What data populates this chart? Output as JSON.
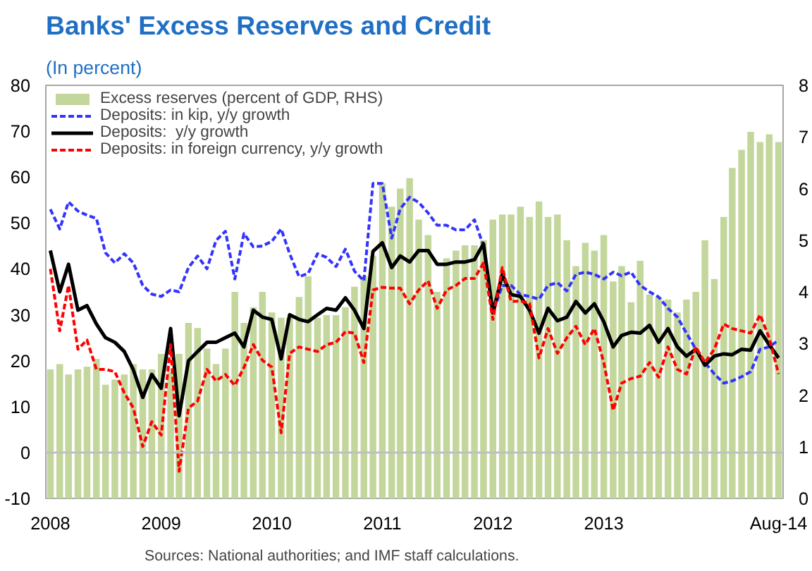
{
  "chart_data": {
    "type": "bar",
    "title": "Banks' Excess Reserves and Credit",
    "subtitle": "(In percent)",
    "x": [
      "2008-01",
      "2008-02",
      "2008-03",
      "2008-04",
      "2008-05",
      "2008-06",
      "2008-07",
      "2008-08",
      "2008-09",
      "2008-10",
      "2008-11",
      "2008-12",
      "2009-01",
      "2009-02",
      "2009-03",
      "2009-04",
      "2009-05",
      "2009-06",
      "2009-07",
      "2009-08",
      "2009-09",
      "2009-10",
      "2009-11",
      "2009-12",
      "2010-01",
      "2010-02",
      "2010-03",
      "2010-04",
      "2010-05",
      "2010-06",
      "2010-07",
      "2010-08",
      "2010-09",
      "2010-10",
      "2010-11",
      "2010-12",
      "2011-01",
      "2011-02",
      "2011-03",
      "2011-04",
      "2011-05",
      "2011-06",
      "2011-07",
      "2011-08",
      "2011-09",
      "2011-10",
      "2011-11",
      "2011-12",
      "2012-01",
      "2012-02",
      "2012-03",
      "2012-04",
      "2012-05",
      "2012-06",
      "2012-07",
      "2012-08",
      "2012-09",
      "2012-10",
      "2012-11",
      "2012-12",
      "2013-01",
      "2013-02",
      "2013-03",
      "2013-04",
      "2013-05",
      "2013-06",
      "2013-07",
      "2013-08",
      "2013-09",
      "2013-10",
      "2013-11",
      "2013-12",
      "2014-01",
      "2014-02",
      "2014-03",
      "2014-04",
      "2014-05",
      "2014-06",
      "2014-07",
      "2014-08"
    ],
    "series": [
      {
        "name": "Excess reserves (percent of GDP, RHS)",
        "axis": "y2",
        "color": "#c3d69b",
        "values": [
          2.5,
          2.6,
          2.4,
          2.5,
          2.55,
          2.7,
          2.2,
          2.3,
          2.4,
          2.6,
          2.5,
          2.5,
          2.8,
          2.45,
          2.8,
          3.4,
          3.3,
          2.9,
          2.6,
          2.9,
          4.0,
          3.4,
          3.7,
          4.0,
          3.6,
          3.5,
          3.5,
          3.9,
          4.3,
          3.5,
          3.55,
          3.55,
          3.7,
          4.1,
          4.3,
          4.7,
          6.1,
          5.65,
          6.0,
          6.2,
          5.4,
          5.1,
          4.0,
          4.65,
          4.8,
          4.9,
          4.9,
          5.0,
          5.4,
          5.5,
          5.5,
          5.65,
          5.45,
          5.75,
          5.45,
          5.5,
          5.0,
          4.5,
          4.95,
          4.8,
          5.1,
          4.2,
          4.5,
          3.8,
          4.6,
          3.95,
          3.9,
          3.85,
          3.6,
          3.85,
          4.0,
          5.0,
          4.25,
          5.45,
          6.4,
          6.75,
          7.1,
          6.9,
          7.05,
          6.9
        ]
      },
      {
        "name": "Deposits: in kip, y/y growth",
        "type": "line",
        "line_style": "dashed",
        "color": "#3333ff",
        "values": [
          53,
          48.7,
          54.6,
          52.6,
          51.7,
          51,
          43.5,
          41.3,
          43.3,
          41.3,
          36.4,
          34.5,
          34,
          35.4,
          35,
          40.3,
          42.8,
          40,
          46.2,
          48.2,
          37.8,
          47.7,
          44.8,
          45,
          46,
          48.7,
          43.3,
          38.3,
          39,
          43.3,
          42.5,
          40.5,
          44.3,
          39.5,
          37.4,
          58.6,
          58.6,
          46.7,
          53.1,
          55.6,
          54.5,
          52.2,
          49.5,
          49.5,
          48.5,
          48.5,
          50.7,
          45,
          30.4,
          36.4,
          36.4,
          34.4,
          34,
          33.4,
          36.4,
          37,
          35.2,
          38.8,
          39.3,
          38.8,
          37.8,
          39.3,
          38.5,
          39.3,
          36.4,
          35,
          33.9,
          31.4,
          29.5,
          26,
          22.5,
          19.6,
          17.1,
          15.1,
          15.6,
          16.5,
          17.6,
          22.5,
          23,
          24.5
        ]
      },
      {
        "name": "Deposits:  y/y growth",
        "type": "line",
        "line_style": "solid",
        "color": "#000000",
        "values": [
          44,
          35,
          41,
          31,
          32,
          28,
          25,
          24,
          22,
          18,
          12,
          17,
          14,
          27,
          8,
          20,
          22,
          24,
          24,
          25,
          26,
          23,
          31,
          29.5,
          29,
          20.4,
          30,
          29,
          28.5,
          30,
          31.4,
          31,
          33.7,
          31,
          27,
          43.8,
          45.7,
          40.3,
          42.8,
          41.5,
          44,
          44,
          41,
          41,
          41.5,
          41.5,
          42,
          45.5,
          30.4,
          38.8,
          34.4,
          34,
          31,
          26,
          31.4,
          28.7,
          29.5,
          32.9,
          30.4,
          32.4,
          28.5,
          23,
          25.5,
          26.2,
          26,
          27.7,
          24,
          27,
          23,
          21,
          22.5,
          19,
          21,
          21.5,
          21.3,
          22.5,
          22.3,
          26.5,
          23.5,
          20.6
        ]
      },
      {
        "name": "Deposits: in foreign currency, y/y growth",
        "type": "line",
        "line_style": "dashed",
        "color": "#ff0000",
        "values": [
          40,
          26.5,
          36.4,
          22.5,
          24.5,
          18.1,
          18.1,
          17.6,
          13,
          9.7,
          1.3,
          6.7,
          3.8,
          23.5,
          -4.1,
          9.7,
          11.2,
          18.1,
          15.6,
          17,
          14.6,
          18.5,
          23.5,
          20.1,
          18.6,
          4.3,
          21.6,
          23,
          22.5,
          22,
          23.5,
          24,
          26.3,
          26,
          19.6,
          35.4,
          36,
          35.8,
          35.8,
          32.4,
          35.4,
          37.4,
          31.4,
          35.4,
          36.4,
          37.9,
          37.9,
          41.3,
          29,
          40.3,
          32.9,
          33,
          32.5,
          20.6,
          27,
          21.6,
          25,
          27.5,
          23.5,
          27,
          19.6,
          9.2,
          15.1,
          16.1,
          16.6,
          19.6,
          16.4,
          23,
          18.1,
          17.1,
          23,
          19.6,
          22.5,
          28,
          27,
          26.5,
          26,
          30,
          25,
          17.1
        ]
      }
    ],
    "xlim": [
      "2007-12-17",
      "2014-08-16"
    ],
    "xticks": [
      {
        "value": "2008-01",
        "label": "2008"
      },
      {
        "value": "2009-01",
        "label": "2009"
      },
      {
        "value": "2010-01",
        "label": "2010"
      },
      {
        "value": "2011-01",
        "label": "2011"
      },
      {
        "value": "2012-01",
        "label": "2012"
      },
      {
        "value": "2013-01",
        "label": "2013"
      },
      {
        "value": "2014-08",
        "label": "Aug-14"
      }
    ],
    "ylim": [
      -10,
      80
    ],
    "yticks": [
      -10,
      0,
      10,
      20,
      30,
      40,
      50,
      60,
      70,
      80
    ],
    "y2lim": [
      0,
      8
    ],
    "y2ticks": [
      0,
      1,
      2,
      3,
      4,
      5,
      6,
      7,
      8
    ],
    "ref_lines": [
      {
        "axis": "y",
        "value": 0,
        "color": "#bfbfbf"
      }
    ],
    "grid": false,
    "legend": "top left",
    "annotations": [
      "Sources: National authorities; and IMF staff calculations."
    ]
  }
}
